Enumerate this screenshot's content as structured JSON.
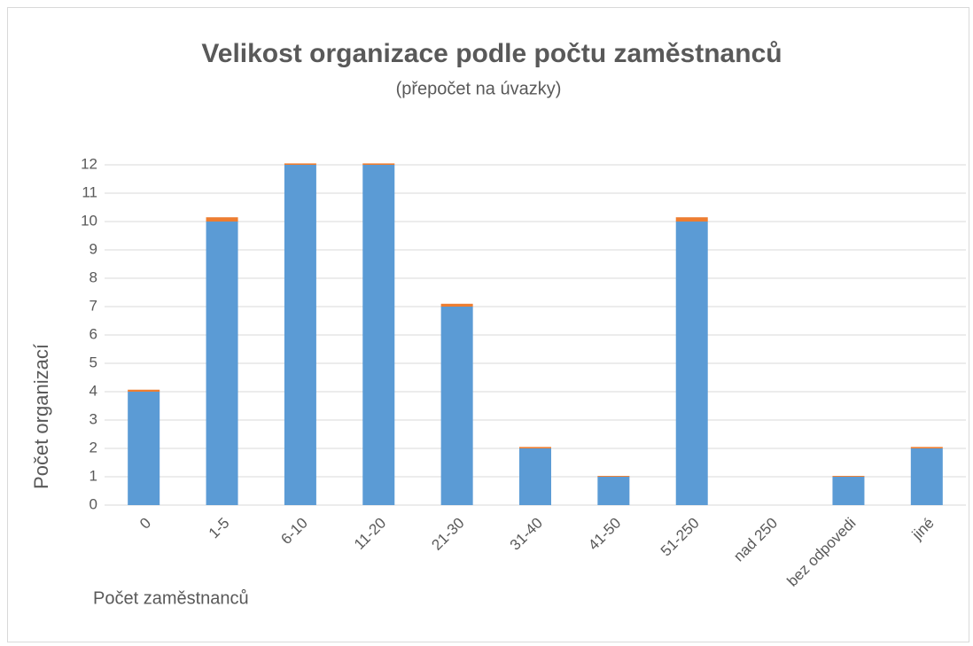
{
  "chart_data": {
    "type": "bar",
    "stacked": true,
    "title": "Velikost organizace podle počtu zaměstnanců",
    "subtitle": "(přepočet na úvazky)",
    "y_label": "Počet organizací",
    "x_label": "Počet zaměstnanců",
    "categories": [
      "0",
      "1-5",
      "6-10",
      "11-20",
      "21-30",
      "31-40",
      "41-50",
      "51-250",
      "nad 250",
      "bez odpovedi",
      "jiné"
    ],
    "series": [
      {
        "color": "#5b9bd5",
        "values": [
          4,
          10,
          12,
          12,
          7,
          2,
          1,
          10,
          0,
          1,
          2
        ]
      },
      {
        "color": "#ed7d31",
        "values": [
          0.07,
          0.15,
          0.05,
          0.05,
          0.1,
          0.05,
          0.03,
          0.15,
          0,
          0.03,
          0.05
        ]
      }
    ],
    "ylim": [
      0,
      12
    ],
    "yticks": [
      0,
      1,
      2,
      3,
      4,
      5,
      6,
      7,
      8,
      9,
      10,
      11,
      12
    ],
    "grid": true
  }
}
